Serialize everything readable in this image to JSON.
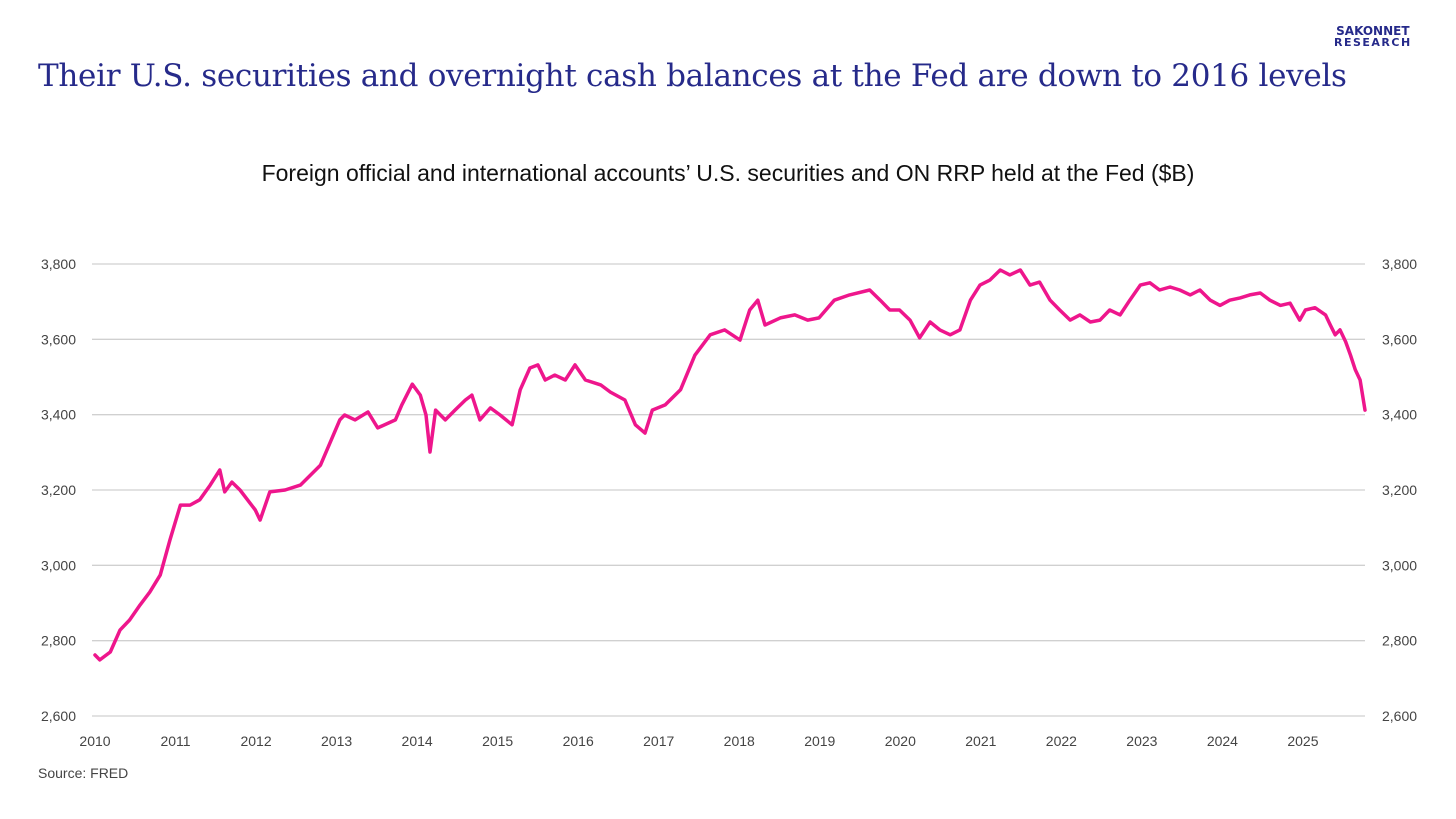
{
  "headline": "Their U.S. securities and overnight cash balances at the Fed are down to 2016 levels",
  "logo": {
    "line1": "SAKONNET",
    "line2": "RESEARCH"
  },
  "source": "Source: FRED",
  "colors": {
    "line": "#ee168c",
    "title": "#262a8a",
    "grid": "#d0d0d0"
  },
  "chart_data": {
    "type": "line",
    "title": "Foreign official and international accounts’ U.S. securities and ON RRP held at the Fed ($B)",
    "xlabel": "",
    "ylabel": "",
    "xlim": [
      2010,
      2025.8
    ],
    "ylim": [
      2600,
      3800
    ],
    "grid": true,
    "secondary_y_axis": true,
    "x_ticks": [
      "2010",
      "2011",
      "2012",
      "2013",
      "2014",
      "2015",
      "2016",
      "2017",
      "2018",
      "2019",
      "2020",
      "2021",
      "2022",
      "2023",
      "2024",
      "2025"
    ],
    "y_ticks": [
      "2,600",
      "2,800",
      "3,000",
      "3,200",
      "3,400",
      "3,600",
      "3,800"
    ],
    "series": [
      {
        "name": "Foreign official and international accounts",
        "points": [
          [
            2010.0,
            2762
          ],
          [
            2010.06,
            2749
          ],
          [
            2010.19,
            2770
          ],
          [
            2010.31,
            2828
          ],
          [
            2010.43,
            2855
          ],
          [
            2010.56,
            2895
          ],
          [
            2010.68,
            2929
          ],
          [
            2010.81,
            2974
          ],
          [
            2010.93,
            3067
          ],
          [
            2011.06,
            3160
          ],
          [
            2011.18,
            3160
          ],
          [
            2011.3,
            3174
          ],
          [
            2011.43,
            3213
          ],
          [
            2011.55,
            3253
          ],
          [
            2011.61,
            3195
          ],
          [
            2011.7,
            3221
          ],
          [
            2011.8,
            3200
          ],
          [
            2011.99,
            3147
          ],
          [
            2012.05,
            3120
          ],
          [
            2012.17,
            3195
          ],
          [
            2012.36,
            3200
          ],
          [
            2012.55,
            3213
          ],
          [
            2012.8,
            3266
          ],
          [
            2013.04,
            3386
          ],
          [
            2013.1,
            3399
          ],
          [
            2013.23,
            3386
          ],
          [
            2013.39,
            3407
          ],
          [
            2013.51,
            3365
          ],
          [
            2013.73,
            3386
          ],
          [
            2013.81,
            3426
          ],
          [
            2013.94,
            3481
          ],
          [
            2014.04,
            3452
          ],
          [
            2014.11,
            3399
          ],
          [
            2014.16,
            3301
          ],
          [
            2014.23,
            3412
          ],
          [
            2014.35,
            3386
          ],
          [
            2014.47,
            3412
          ],
          [
            2014.6,
            3439
          ],
          [
            2014.68,
            3452
          ],
          [
            2014.78,
            3386
          ],
          [
            2014.91,
            3418
          ],
          [
            2015.03,
            3399
          ],
          [
            2015.18,
            3373
          ],
          [
            2015.28,
            3466
          ],
          [
            2015.4,
            3524
          ],
          [
            2015.5,
            3532
          ],
          [
            2015.59,
            3492
          ],
          [
            2015.71,
            3505
          ],
          [
            2015.84,
            3492
          ],
          [
            2015.96,
            3532
          ],
          [
            2016.09,
            3492
          ],
          [
            2016.28,
            3479
          ],
          [
            2016.4,
            3460
          ],
          [
            2016.58,
            3439
          ],
          [
            2016.71,
            3373
          ],
          [
            2016.83,
            3351
          ],
          [
            2016.92,
            3412
          ],
          [
            2017.08,
            3426
          ],
          [
            2017.27,
            3466
          ],
          [
            2017.45,
            3558
          ],
          [
            2017.64,
            3612
          ],
          [
            2017.82,
            3625
          ],
          [
            2018.01,
            3598
          ],
          [
            2018.13,
            3678
          ],
          [
            2018.23,
            3704
          ],
          [
            2018.32,
            3638
          ],
          [
            2018.51,
            3657
          ],
          [
            2018.69,
            3665
          ],
          [
            2018.85,
            3651
          ],
          [
            2018.99,
            3657
          ],
          [
            2019.18,
            3704
          ],
          [
            2019.37,
            3718
          ],
          [
            2019.62,
            3731
          ],
          [
            2019.75,
            3704
          ],
          [
            2019.87,
            3678
          ],
          [
            2019.99,
            3678
          ],
          [
            2020.12,
            3651
          ],
          [
            2020.24,
            3604
          ],
          [
            2020.37,
            3646
          ],
          [
            2020.49,
            3625
          ],
          [
            2020.62,
            3612
          ],
          [
            2020.74,
            3625
          ],
          [
            2020.87,
            3704
          ],
          [
            2020.99,
            3744
          ],
          [
            2021.11,
            3757
          ],
          [
            2021.24,
            3784
          ],
          [
            2021.36,
            3771
          ],
          [
            2021.49,
            3784
          ],
          [
            2021.61,
            3744
          ],
          [
            2021.73,
            3752
          ],
          [
            2021.86,
            3704
          ],
          [
            2021.98,
            3678
          ],
          [
            2022.11,
            3651
          ],
          [
            2022.23,
            3665
          ],
          [
            2022.36,
            3646
          ],
          [
            2022.48,
            3651
          ],
          [
            2022.6,
            3678
          ],
          [
            2022.73,
            3665
          ],
          [
            2022.85,
            3704
          ],
          [
            2022.98,
            3744
          ],
          [
            2023.1,
            3750
          ],
          [
            2023.22,
            3731
          ],
          [
            2023.35,
            3739
          ],
          [
            2023.47,
            3731
          ],
          [
            2023.6,
            3718
          ],
          [
            2023.72,
            3731
          ],
          [
            2023.85,
            3704
          ],
          [
            2023.97,
            3690
          ],
          [
            2024.09,
            3704
          ],
          [
            2024.22,
            3710
          ],
          [
            2024.34,
            3718
          ],
          [
            2024.47,
            3723
          ],
          [
            2024.59,
            3704
          ],
          [
            2024.72,
            3690
          ],
          [
            2024.84,
            3696
          ],
          [
            2024.96,
            3651
          ],
          [
            2025.03,
            3678
          ],
          [
            2025.15,
            3684
          ],
          [
            2025.28,
            3665
          ],
          [
            2025.34,
            3638
          ],
          [
            2025.4,
            3612
          ],
          [
            2025.46,
            3625
          ],
          [
            2025.53,
            3594
          ],
          [
            2025.59,
            3558
          ],
          [
            2025.65,
            3519
          ],
          [
            2025.71,
            3492
          ],
          [
            2025.77,
            3412
          ]
        ]
      }
    ]
  }
}
